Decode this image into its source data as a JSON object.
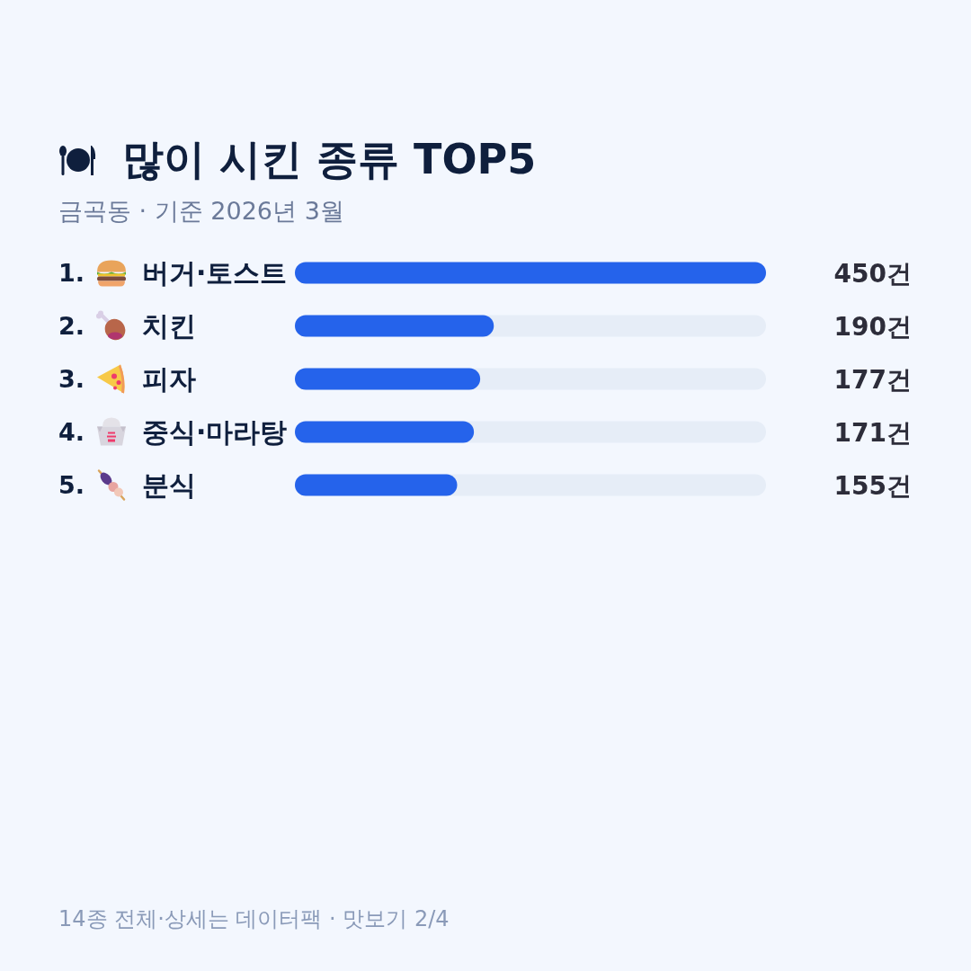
{
  "chart_data": {
    "type": "bar",
    "orientation": "horizontal",
    "title": "많이 시킨 종류 TOP5",
    "subtitle": "금곡동 · 기준 2026년 3월",
    "categories": [
      "버거·토스트",
      "치킨",
      "피자",
      "중식·마라탕",
      "분식"
    ],
    "values": [
      450,
      190,
      177,
      171,
      155
    ],
    "color": "#2563eb",
    "value_labels": [
      "450건",
      "190건",
      "177건",
      "171건",
      "155건"
    ],
    "xlim": [
      0,
      450
    ],
    "tick_labels": "y",
    "annotations": [
      "1.",
      "2.",
      "3.",
      "4.",
      "5.",
      "14종 전체·상세는 데이터팩 · 맛보기 2/4"
    ]
  }
}
